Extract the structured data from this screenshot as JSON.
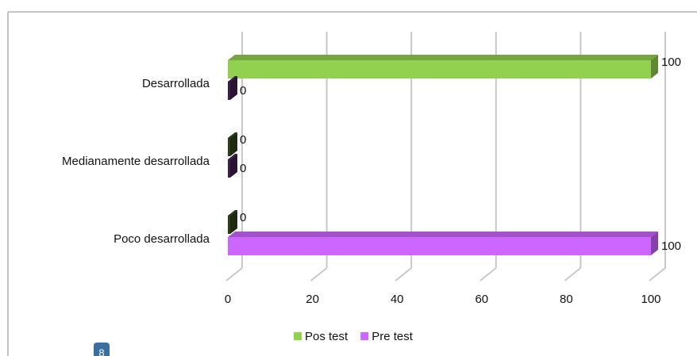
{
  "chart_data": {
    "type": "bar3d_horizontal",
    "categories": [
      "Desarrollada",
      "Medianamente desarrollada",
      "Poco desarrollada"
    ],
    "series": [
      {
        "name": "Pos test",
        "color": "#92d050",
        "values": [
          100,
          0,
          0
        ]
      },
      {
        "name": "Pre test",
        "color": "#cc66ff",
        "values": [
          0,
          0,
          100
        ]
      }
    ],
    "xlim": [
      0,
      100
    ],
    "xticks": [
      0,
      20,
      40,
      60,
      80,
      100
    ],
    "grid": true,
    "legend": "bottom",
    "annotations": [
      "8"
    ]
  }
}
